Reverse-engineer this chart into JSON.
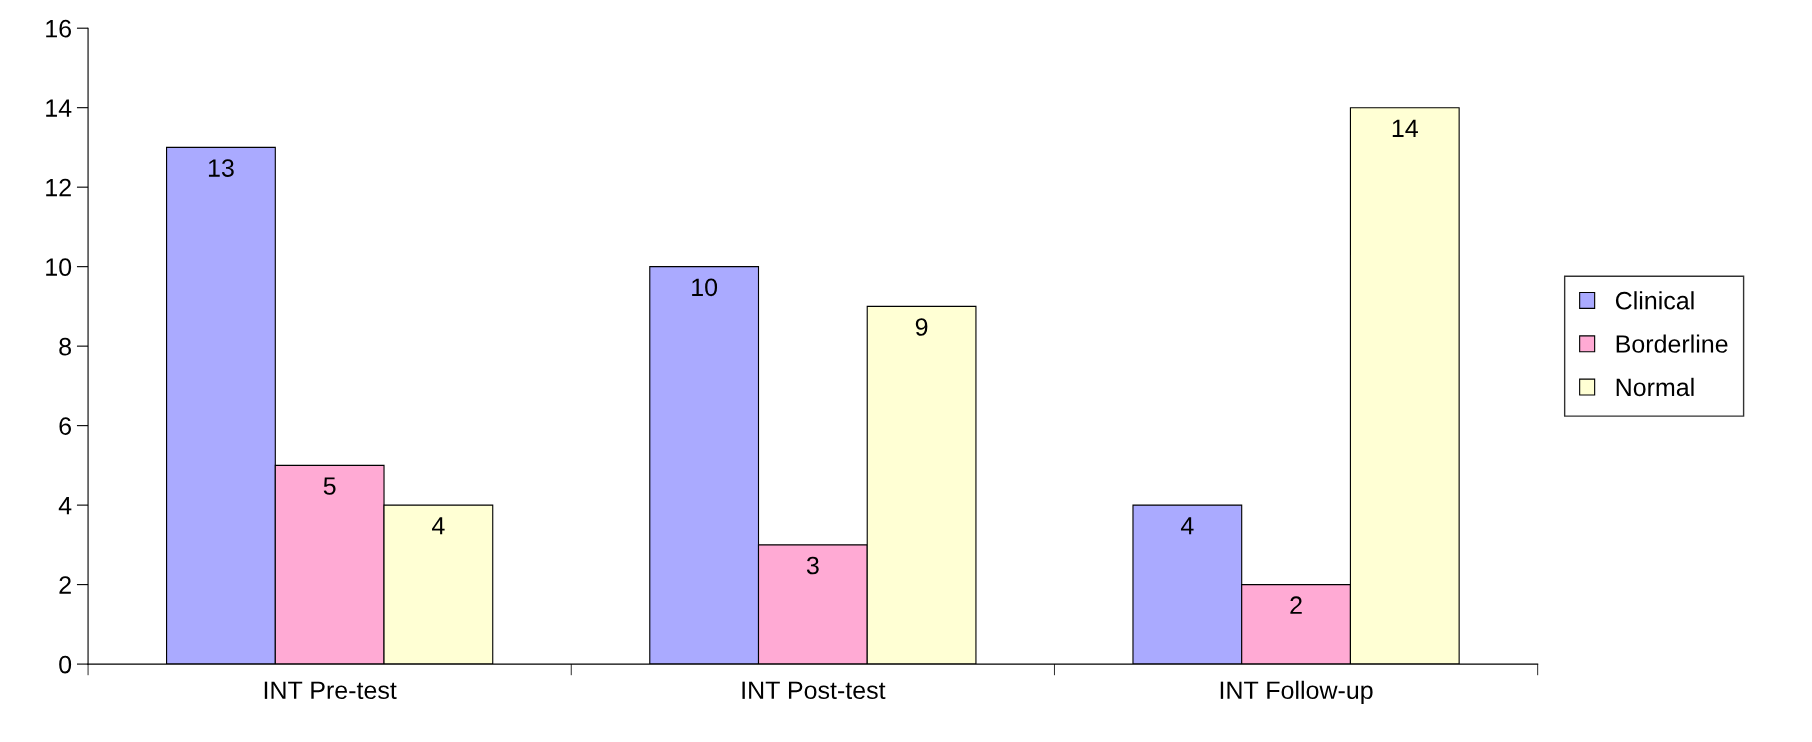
{
  "chart_data": {
    "type": "bar",
    "categories": [
      "INT Pre-test",
      "INT Post-test",
      "INT Follow-up"
    ],
    "series": [
      {
        "name": "Clinical",
        "color": "#aaaaff",
        "values": [
          13,
          10,
          4
        ]
      },
      {
        "name": "Borderline",
        "color": "#ffaad4",
        "values": [
          5,
          3,
          2
        ]
      },
      {
        "name": "Normal",
        "color": "#ffffd4",
        "values": [
          4,
          9,
          14
        ]
      }
    ],
    "ylim": [
      0,
      16
    ],
    "yticks": [
      0,
      2,
      4,
      6,
      8,
      10,
      12,
      14,
      16
    ],
    "data_labels": true,
    "grid": false,
    "legend": "right"
  }
}
